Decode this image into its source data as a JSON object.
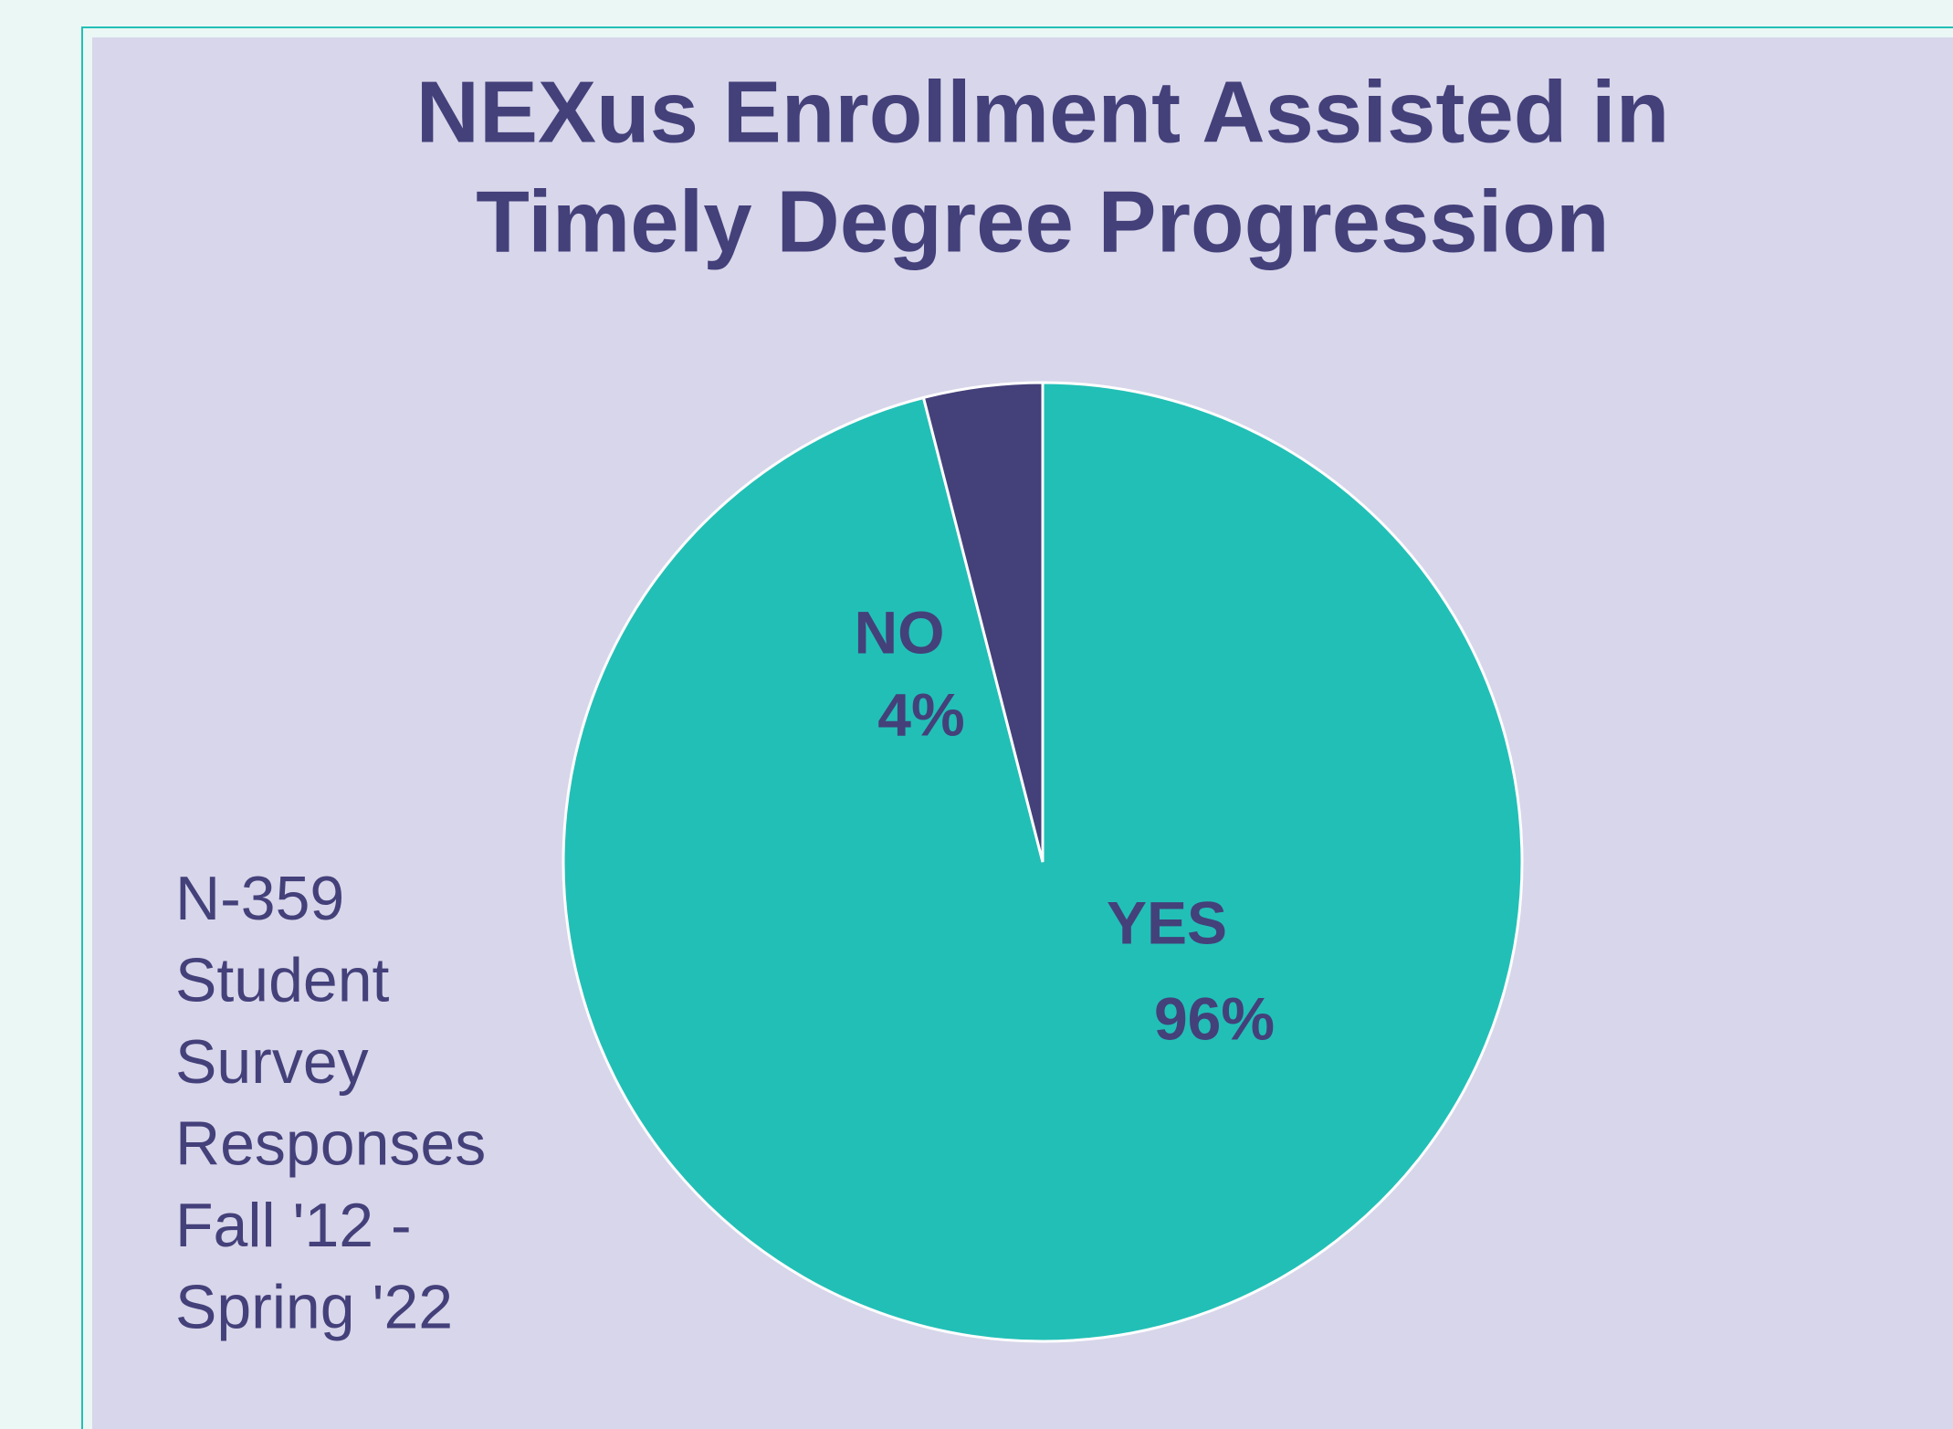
{
  "chart_data": {
    "type": "pie",
    "title_lines": [
      "NEXus Enrollment Assisted in",
      "Timely Degree Progression"
    ],
    "categories": [
      "YES",
      "NO"
    ],
    "values": [
      96,
      4
    ],
    "value_labels": [
      "96%",
      "4%"
    ],
    "colors": [
      "#22bfb6",
      "#44407a"
    ],
    "annotation_lines": [
      "N-359",
      "Student",
      "Survey",
      "Responses",
      "Fall '12 -",
      "Spring '22"
    ]
  }
}
